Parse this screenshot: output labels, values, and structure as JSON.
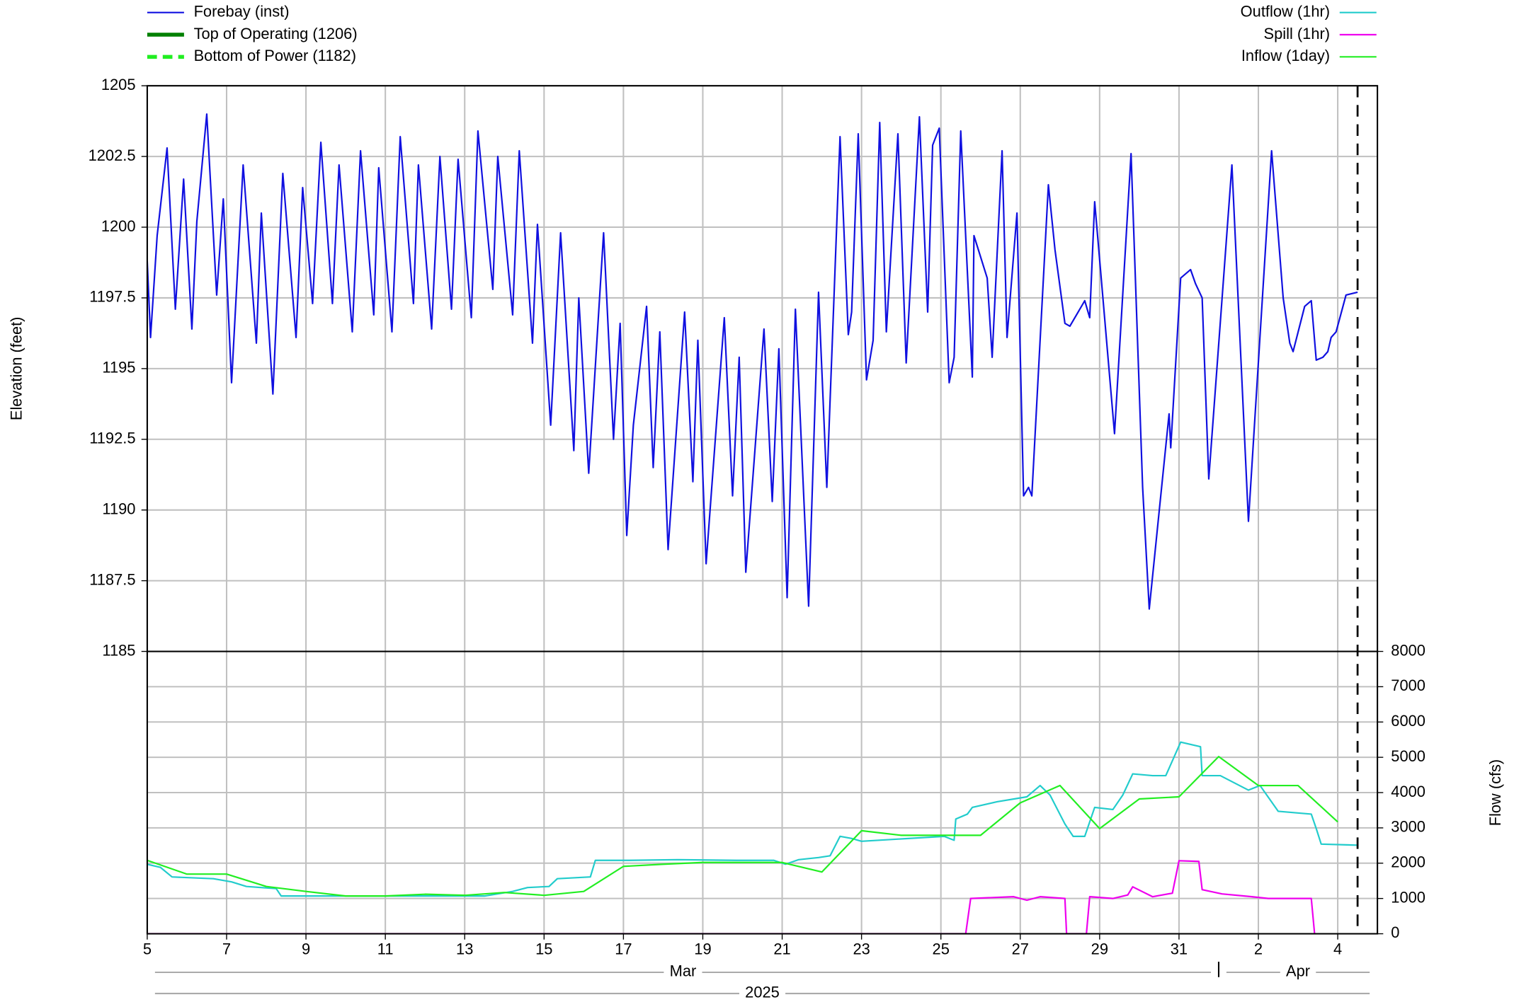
{
  "chart_data": [
    {
      "type": "line",
      "y_label": "Elevation (feet)",
      "legend": "top-left",
      "grid": true,
      "y_axis_side": "left",
      "xlim": [
        "2025-03-05T00:00",
        "2025-04-05T00:00"
      ],
      "xticks": [
        {
          "value": "2025-03-05T00:00",
          "label": "5"
        },
        {
          "value": "2025-03-07T00:00",
          "label": "7"
        },
        {
          "value": "2025-03-09T00:00",
          "label": "9"
        },
        {
          "value": "2025-03-11T00:00",
          "label": "11"
        },
        {
          "value": "2025-03-13T00:00",
          "label": "13"
        },
        {
          "value": "2025-03-15T00:00",
          "label": "15"
        },
        {
          "value": "2025-03-17T00:00",
          "label": "17"
        },
        {
          "value": "2025-03-19T00:00",
          "label": "19"
        },
        {
          "value": "2025-03-21T00:00",
          "label": "21"
        },
        {
          "value": "2025-03-23T00:00",
          "label": "23"
        },
        {
          "value": "2025-03-25T00:00",
          "label": "25"
        },
        {
          "value": "2025-03-27T00:00",
          "label": "27"
        },
        {
          "value": "2025-03-29T00:00",
          "label": "29"
        },
        {
          "value": "2025-03-31T00:00",
          "label": "31"
        },
        {
          "value": "2025-04-02T00:00",
          "label": "2"
        },
        {
          "value": "2025-04-04T00:00",
          "label": "4"
        }
      ],
      "months": [
        "Mar",
        "Apr"
      ],
      "year": "2025",
      "now_line": "2025-04-04T12:00",
      "ylim": [
        1185,
        1205
      ],
      "yticks": [
        1185,
        1187.5,
        1190,
        1192.5,
        1195,
        1197.5,
        1200,
        1202.5,
        1205
      ],
      "reference_lines": [
        {
          "name": "Top of Operating (1206)",
          "value": 1206,
          "color": "#008000",
          "dashed": false
        },
        {
          "name": "Bottom of Power (1182)",
          "value": 1182,
          "color": "#22ee22",
          "dashed": true
        }
      ],
      "series": [
        {
          "name": "Forebay (inst)",
          "color": "#1010e0",
          "x": [
            "2025-03-05T00:00",
            "2025-03-05T02:00",
            "2025-03-05T06:00",
            "2025-03-05T12:00",
            "2025-03-05T17:00",
            "2025-03-05T22:00",
            "2025-03-06T03:00",
            "2025-03-06T06:00",
            "2025-03-06T12:00",
            "2025-03-06T18:00",
            "2025-03-06T22:00",
            "2025-03-07T03:00",
            "2025-03-07T10:00",
            "2025-03-07T18:00",
            "2025-03-07T21:00",
            "2025-03-08T04:00",
            "2025-03-08T10:00",
            "2025-03-08T18:00",
            "2025-03-08T22:00",
            "2025-03-09T04:00",
            "2025-03-09T09:00",
            "2025-03-09T16:00",
            "2025-03-09T20:00",
            "2025-03-10T04:00",
            "2025-03-10T09:00",
            "2025-03-10T17:00",
            "2025-03-10T20:00",
            "2025-03-11T04:00",
            "2025-03-11T09:00",
            "2025-03-11T17:00",
            "2025-03-11T20:00",
            "2025-03-12T04:00",
            "2025-03-12T09:00",
            "2025-03-12T16:00",
            "2025-03-12T20:00",
            "2025-03-13T04:00",
            "2025-03-13T08:00",
            "2025-03-13T17:00",
            "2025-03-13T20:00",
            "2025-03-14T05:00",
            "2025-03-14T09:00",
            "2025-03-14T17:00",
            "2025-03-14T20:00",
            "2025-03-15T04:00",
            "2025-03-15T10:00",
            "2025-03-15T18:00",
            "2025-03-15T21:00",
            "2025-03-16T03:00",
            "2025-03-16T12:00",
            "2025-03-16T18:00",
            "2025-03-16T22:00",
            "2025-03-17T02:00",
            "2025-03-17T06:00",
            "2025-03-17T14:00",
            "2025-03-17T18:00",
            "2025-03-17T22:00",
            "2025-03-18T03:00",
            "2025-03-18T13:00",
            "2025-03-18T18:00",
            "2025-03-18T21:00",
            "2025-03-19T02:00",
            "2025-03-19T13:00",
            "2025-03-19T18:00",
            "2025-03-19T22:00",
            "2025-03-20T02:00",
            "2025-03-20T13:00",
            "2025-03-20T18:00",
            "2025-03-20T22:00",
            "2025-03-21T03:00",
            "2025-03-21T08:00",
            "2025-03-21T16:00",
            "2025-03-21T22:00",
            "2025-03-22T03:00",
            "2025-03-22T11:00",
            "2025-03-22T16:00",
            "2025-03-22T18:00",
            "2025-03-22T22:00",
            "2025-03-23T03:00",
            "2025-03-23T07:00",
            "2025-03-23T11:00",
            "2025-03-23T15:00",
            "2025-03-23T22:00",
            "2025-03-24T03:00",
            "2025-03-24T11:00",
            "2025-03-24T16:00",
            "2025-03-24T19:00",
            "2025-03-24T23:00",
            "2025-03-25T05:00",
            "2025-03-25T08:00",
            "2025-03-25T12:00",
            "2025-03-25T19:00",
            "2025-03-25T20:00",
            "2025-03-26T04:00",
            "2025-03-26T07:00",
            "2025-03-26T13:00",
            "2025-03-26T16:00",
            "2025-03-26T22:00",
            "2025-03-27T02:00",
            "2025-03-27T05:00",
            "2025-03-27T07:00",
            "2025-03-27T17:00",
            "2025-03-27T21:00",
            "2025-03-28T03:00",
            "2025-03-28T06:00",
            "2025-03-28T15:00",
            "2025-03-28T18:00",
            "2025-03-28T21:00",
            "2025-03-29T09:00",
            "2025-03-29T19:00",
            "2025-03-30T02:00",
            "2025-03-30T06:00",
            "2025-03-30T18:00",
            "2025-03-30T19:00",
            "2025-03-31T01:00",
            "2025-03-31T07:00",
            "2025-03-31T10:00",
            "2025-03-31T14:00",
            "2025-03-31T18:00",
            "2025-04-01T08:00",
            "2025-04-01T18:00",
            "2025-04-02T08:00",
            "2025-04-02T15:00",
            "2025-04-02T19:00",
            "2025-04-02T21:00",
            "2025-04-03T04:00",
            "2025-04-03T08:00",
            "2025-04-03T11:00",
            "2025-04-03T15:00",
            "2025-04-03T18:00",
            "2025-04-03T20:00",
            "2025-04-03T23:00",
            "2025-04-04T05:00",
            "2025-04-04T12:00"
          ],
          "values": [
            1198.8,
            1196.1,
            1199.7,
            1202.8,
            1197.1,
            1201.7,
            1196.4,
            1200.2,
            1204.0,
            1197.6,
            1201.0,
            1194.5,
            1202.2,
            1195.9,
            1200.5,
            1194.1,
            1201.9,
            1196.1,
            1201.4,
            1197.3,
            1203.0,
            1197.3,
            1202.2,
            1196.3,
            1202.7,
            1196.9,
            1202.1,
            1196.3,
            1203.2,
            1197.3,
            1202.2,
            1196.4,
            1202.5,
            1197.1,
            1202.4,
            1196.8,
            1203.4,
            1197.8,
            1202.5,
            1196.9,
            1202.7,
            1195.9,
            1200.1,
            1193.0,
            1199.8,
            1192.1,
            1197.5,
            1191.3,
            1199.8,
            1192.5,
            1196.6,
            1189.1,
            1193.0,
            1197.2,
            1191.5,
            1196.3,
            1188.6,
            1197.0,
            1191.0,
            1196.0,
            1188.1,
            1196.8,
            1190.5,
            1195.4,
            1187.8,
            1196.4,
            1190.3,
            1195.7,
            1186.9,
            1197.1,
            1186.6,
            1197.7,
            1190.8,
            1203.2,
            1196.2,
            1197.0,
            1203.3,
            1194.6,
            1196.0,
            1203.7,
            1196.3,
            1203.3,
            1195.2,
            1203.9,
            1197.0,
            1202.9,
            1203.5,
            1194.5,
            1195.4,
            1203.4,
            1194.7,
            1199.7,
            1198.2,
            1195.4,
            1202.7,
            1196.1,
            1200.5,
            1190.5,
            1190.8,
            1190.5,
            1201.5,
            1199.2,
            1196.6,
            1196.5,
            1197.4,
            1196.8,
            1200.9,
            1192.7,
            1202.6,
            1190.8,
            1186.5,
            1193.4,
            1192.2,
            1198.2,
            1198.5,
            1198.0,
            1197.5,
            1191.1,
            1202.2,
            1189.6,
            1202.7,
            1197.5,
            1195.9,
            1195.6,
            1197.2,
            1197.4,
            1195.3,
            1195.4,
            1195.6,
            1196.1,
            1196.3,
            1197.6,
            1197.7
          ]
        }
      ]
    },
    {
      "type": "line",
      "y_label": "Flow (cfs)",
      "legend": "top-right",
      "grid": true,
      "y_axis_side": "right",
      "ylim": [
        0,
        8000
      ],
      "yticks": [
        0,
        1000,
        2000,
        3000,
        4000,
        5000,
        6000,
        7000,
        8000
      ],
      "series": [
        {
          "name": "Outflow (1hr)",
          "color": "#22cccc",
          "x": [
            "2025-03-05T00:00",
            "2025-03-05T08:00",
            "2025-03-05T15:00",
            "2025-03-06T16:00",
            "2025-03-07T03:00",
            "2025-03-07T12:00",
            "2025-03-08T06:00",
            "2025-03-08T09:00",
            "2025-03-09T02:00",
            "2025-03-11T01:00",
            "2025-03-13T12:00",
            "2025-03-14T05:00",
            "2025-03-14T14:00",
            "2025-03-15T03:00",
            "2025-03-15T08:00",
            "2025-03-16T04:00",
            "2025-03-16T07:00",
            "2025-03-17T03:00",
            "2025-03-18T09:00",
            "2025-03-19T20:00",
            "2025-03-20T19:00",
            "2025-03-21T02:00",
            "2025-03-21T10:00",
            "2025-03-21T22:00",
            "2025-03-22T05:00",
            "2025-03-22T11:00",
            "2025-03-22T18:00",
            "2025-03-23T00:00",
            "2025-03-25T02:00",
            "2025-03-25T08:00",
            "2025-03-25T09:00",
            "2025-03-25T16:00",
            "2025-03-25T19:00",
            "2025-03-26T10:00",
            "2025-03-27T04:00",
            "2025-03-27T12:00",
            "2025-03-27T18:00",
            "2025-03-28T03:00",
            "2025-03-28T08:00",
            "2025-03-28T15:00",
            "2025-03-28T21:00",
            "2025-03-29T08:00",
            "2025-03-29T14:00",
            "2025-03-29T20:00",
            "2025-03-30T08:00",
            "2025-03-30T16:00",
            "2025-03-31T01:00",
            "2025-03-31T13:00",
            "2025-03-31T14:00",
            "2025-04-01T01:00",
            "2025-04-01T18:00",
            "2025-04-02T01:00",
            "2025-04-02T12:00",
            "2025-04-03T08:00",
            "2025-04-03T11:00",
            "2025-04-03T14:00",
            "2025-04-04T12:00"
          ],
          "values": [
            1970,
            1880,
            1610,
            1560,
            1470,
            1340,
            1280,
            1070,
            1070,
            1070,
            1070,
            1200,
            1310,
            1340,
            1560,
            1610,
            2080,
            2080,
            2100,
            2080,
            2080,
            1970,
            2100,
            2160,
            2210,
            2760,
            2700,
            2620,
            2760,
            2650,
            3250,
            3390,
            3580,
            3740,
            3880,
            4200,
            3930,
            3110,
            2760,
            2760,
            3580,
            3520,
            3930,
            4530,
            4480,
            4480,
            5430,
            5300,
            4480,
            4480,
            4070,
            4200,
            3470,
            3390,
            2980,
            2540,
            2510
          ]
        },
        {
          "name": "Spill (1hr)",
          "color": "#ee00ee",
          "x": [
            "2025-03-05T00:00",
            "2025-03-25T15:00",
            "2025-03-25T18:00",
            "2025-03-26T20:00",
            "2025-03-27T04:00",
            "2025-03-27T12:00",
            "2025-03-28T03:00",
            "2025-03-28T04:00",
            "2025-03-28T16:00",
            "2025-03-28T18:00",
            "2025-03-29T08:00",
            "2025-03-29T17:00",
            "2025-03-29T20:00",
            "2025-03-30T08:00",
            "2025-03-30T20:00",
            "2025-03-31T00:00",
            "2025-03-31T12:00",
            "2025-03-31T14:00",
            "2025-04-01T02:00",
            "2025-04-01T20:00",
            "2025-04-02T06:00",
            "2025-04-03T08:00",
            "2025-04-03T10:00"
          ],
          "values": [
            0,
            0,
            1000,
            1050,
            950,
            1050,
            1000,
            0,
            0,
            1050,
            1000,
            1100,
            1330,
            1050,
            1150,
            2070,
            2050,
            1250,
            1130,
            1050,
            1000,
            1000,
            0
          ]
        },
        {
          "name": "Inflow (1day)",
          "color": "#22ee22",
          "x": [
            "2025-03-05T00:00",
            "2025-03-06T00:00",
            "2025-03-07T00:00",
            "2025-03-08T00:00",
            "2025-03-09T00:00",
            "2025-03-10T00:00",
            "2025-03-11T00:00",
            "2025-03-12T00:00",
            "2025-03-13T00:00",
            "2025-03-14T00:00",
            "2025-03-15T00:00",
            "2025-03-16T00:00",
            "2025-03-17T00:00",
            "2025-03-18T00:00",
            "2025-03-19T00:00",
            "2025-03-20T00:00",
            "2025-03-21T00:00",
            "2025-03-22T00:00",
            "2025-03-23T00:00",
            "2025-03-24T00:00",
            "2025-03-25T00:00",
            "2025-03-26T00:00",
            "2025-03-27T00:00",
            "2025-03-28T00:00",
            "2025-03-29T00:00",
            "2025-03-30T00:00",
            "2025-03-31T00:00",
            "2025-04-01T00:00",
            "2025-04-02T00:00",
            "2025-04-03T00:00",
            "2025-04-04T00:00"
          ],
          "values": [
            2080,
            1690,
            1690,
            1340,
            1200,
            1070,
            1070,
            1120,
            1090,
            1170,
            1090,
            1200,
            1910,
            1970,
            2020,
            2020,
            2020,
            1750,
            2920,
            2790,
            2790,
            2790,
            3710,
            4200,
            2980,
            3820,
            3880,
            5020,
            4200,
            4200,
            3170
          ]
        }
      ]
    }
  ]
}
